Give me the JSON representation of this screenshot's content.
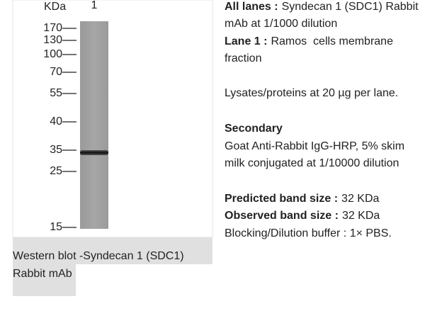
{
  "blot": {
    "unit_label": "KDa",
    "lane_label": "1",
    "markers": [
      "170",
      "130",
      "100",
      "70",
      "55",
      "40",
      "35",
      "25",
      "15"
    ]
  },
  "caption": [
    "Western blot -Syndecan 1 (SDC1)",
    "Rabbit mAb"
  ],
  "details": [
    {
      "label": "All lanes :",
      "text": "Syndecan 1 (SDC1) Rabbit"
    },
    {
      "text": "mAb at 1/1000 dilution"
    },
    {
      "label": "Lane 1 :",
      "text": "Ramos  cells membrane"
    },
    {
      "text": "fraction"
    },
    {
      "text": "Lysates/proteins at 20 µg per lane."
    },
    {
      "label": "Secondary"
    },
    {
      "text": "Goat Anti-Rabbit IgG-HRP, 5% skim"
    },
    {
      "text": "milk conjugated at 1/10000 dilution"
    },
    {
      "label": "Predicted band size :",
      "text": "32 KDa"
    },
    {
      "label": "Observed band size :",
      "text": "32 KDa"
    },
    {
      "text": "Blocking/Dilution buffer : 1× PBS."
    }
  ]
}
